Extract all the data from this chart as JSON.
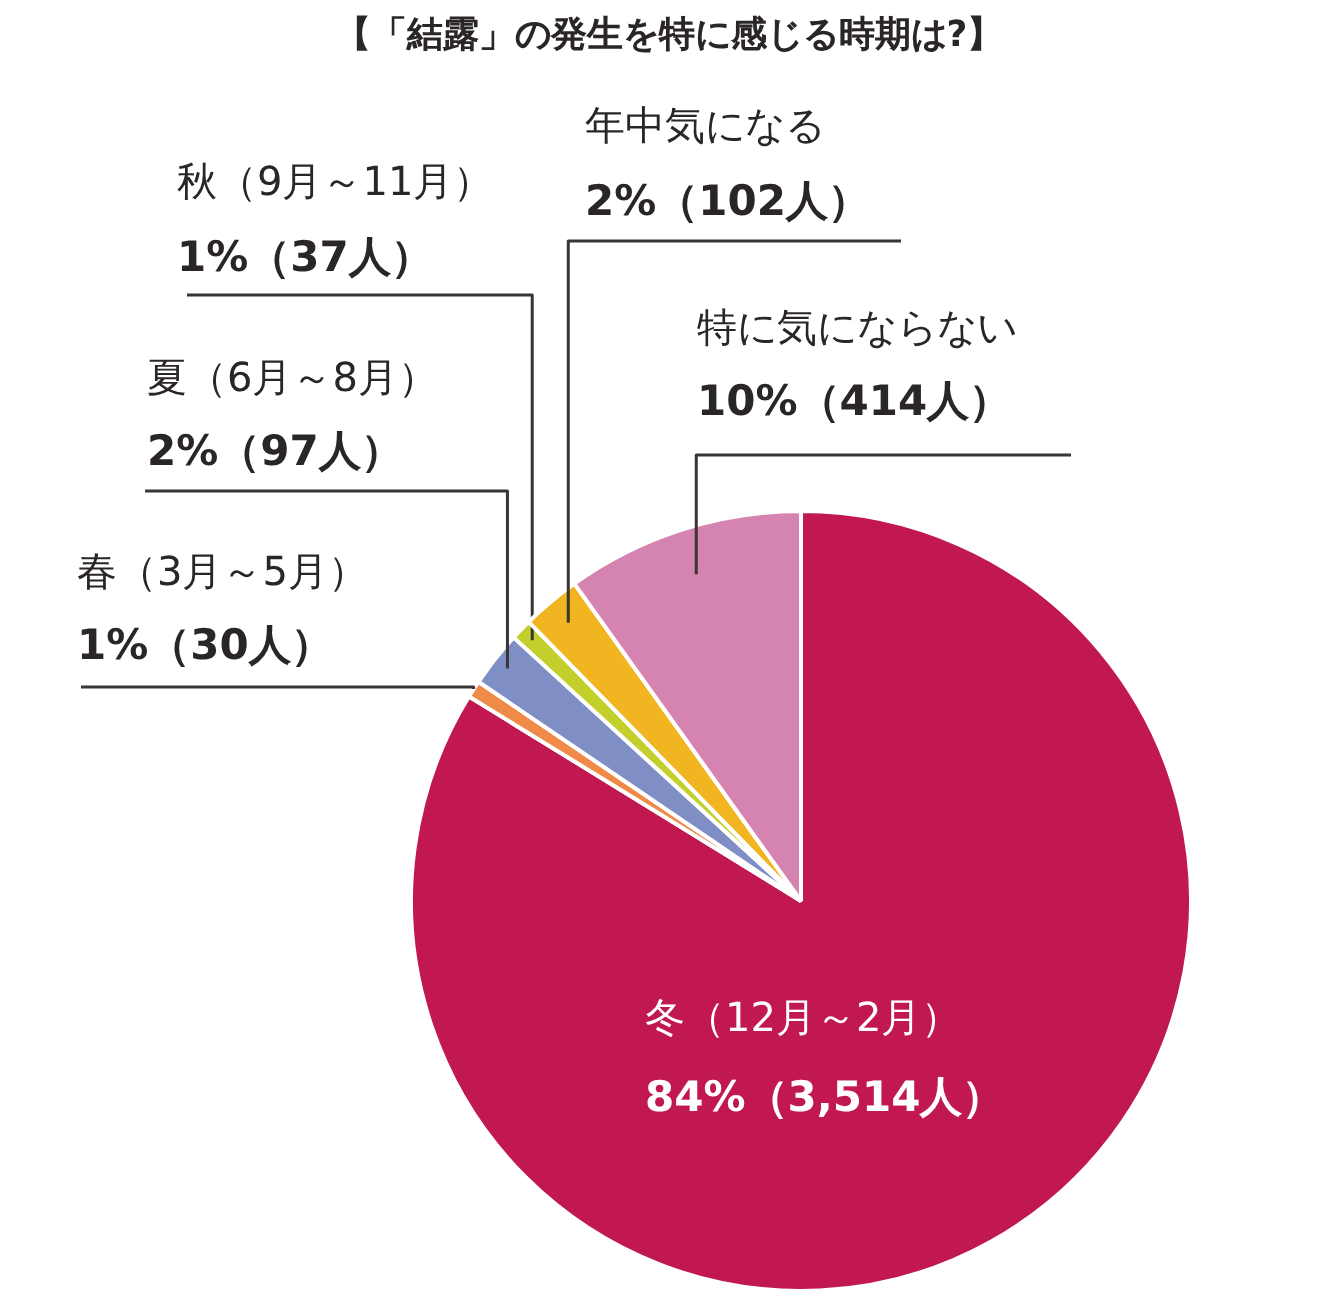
{
  "chart_data": {
    "type": "pie",
    "title": "【「結露」の発生を特に感じる時期は?】",
    "categories": [
      "冬（12月～2月）",
      "春（3月～5月）",
      "夏（6月～8月）",
      "秋（9月～11月）",
      "年中気になる",
      "特に気にならない"
    ],
    "values": [
      3514,
      30,
      97,
      37,
      102,
      414
    ],
    "colors": [
      "#c0184f",
      "#ef8a48",
      "#7f8fc5",
      "#c3cf2b",
      "#f0b520",
      "#d583b0"
    ],
    "value_labels": [
      "84%（3,514人）",
      "1%（30人）",
      "2%（97人）",
      "1%（37人）",
      "2%（102人）",
      "10%（414人）"
    ]
  }
}
